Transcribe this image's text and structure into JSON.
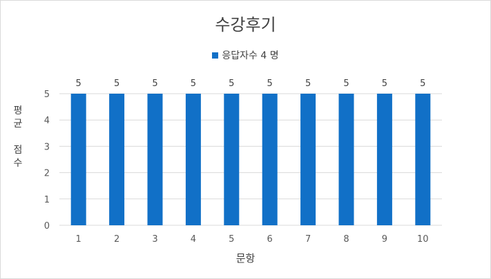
{
  "chart_data": {
    "type": "bar",
    "title": "수강후기",
    "xlabel": "문항",
    "ylabel": [
      "평",
      "균",
      "점",
      "수"
    ],
    "categories": [
      "1",
      "2",
      "3",
      "4",
      "5",
      "6",
      "7",
      "8",
      "9",
      "10"
    ],
    "series": [
      {
        "name": "응답자수 4 명",
        "values": [
          5,
          5,
          5,
          5,
          5,
          5,
          5,
          5,
          5,
          5
        ]
      }
    ],
    "ylim": [
      0,
      5
    ],
    "yticks": [
      0,
      1,
      2,
      3,
      4,
      5
    ],
    "grid": true,
    "legend": "top-center",
    "data_labels": true,
    "bar_color": "#1170C7",
    "gridline_color": "#D9D9D9"
  }
}
